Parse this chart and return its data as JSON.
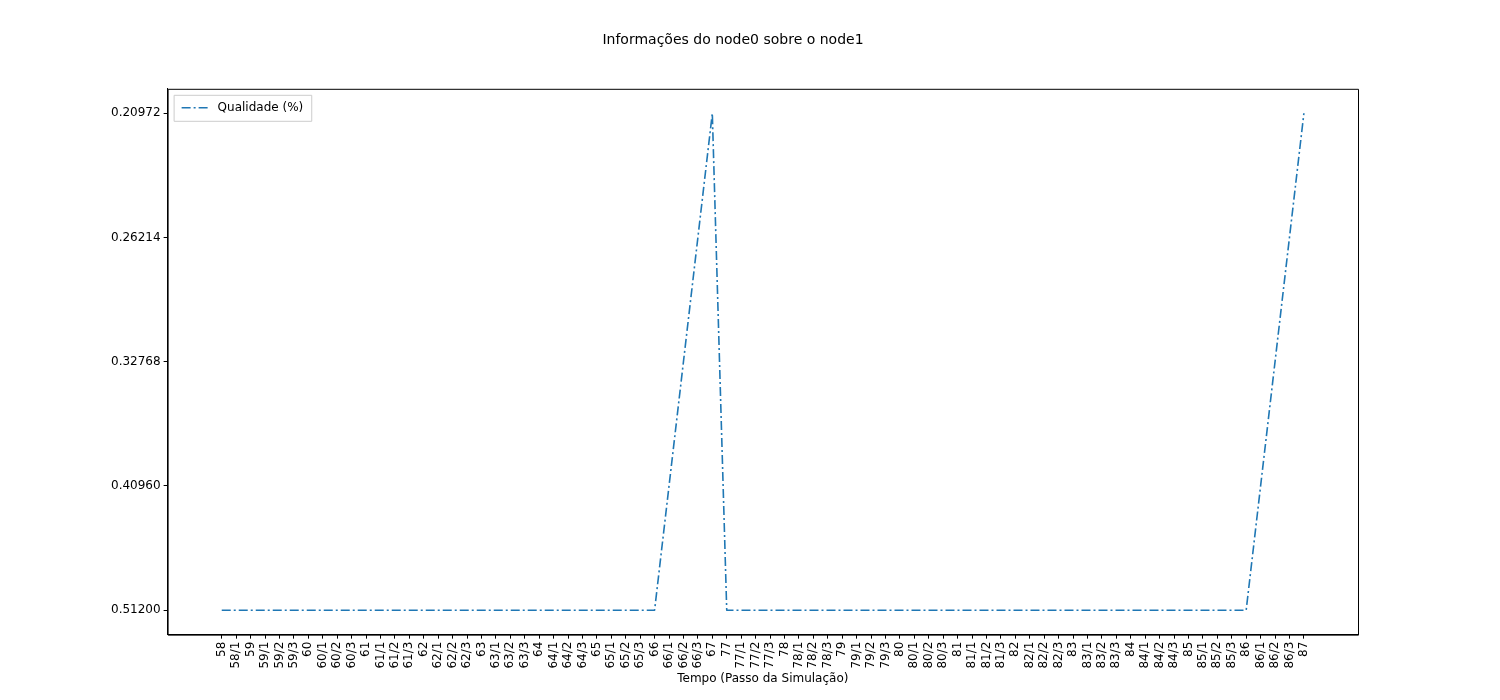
{
  "chart_data": {
    "type": "line",
    "title": "Informações do node0 sobre o node1",
    "xlabel": "Tempo (Passo da Simulação)",
    "categories": [
      "58",
      "58/1",
      "59",
      "59/1",
      "59/2",
      "59/3",
      "60",
      "60/1",
      "60/2",
      "60/3",
      "61",
      "61/1",
      "61/2",
      "61/3",
      "62",
      "62/1",
      "62/2",
      "62/3",
      "63",
      "63/1",
      "63/2",
      "63/3",
      "64",
      "64/1",
      "64/2",
      "64/3",
      "65",
      "65/1",
      "65/2",
      "65/3",
      "66",
      "66/1",
      "66/2",
      "66/3",
      "67",
      "77",
      "77/1",
      "77/2",
      "77/3",
      "78",
      "78/1",
      "78/2",
      "78/3",
      "79",
      "79/1",
      "79/2",
      "79/3",
      "80",
      "80/1",
      "80/2",
      "80/3",
      "81",
      "81/1",
      "81/2",
      "81/3",
      "82",
      "82/1",
      "82/2",
      "82/3",
      "83",
      "83/1",
      "83/2",
      "83/3",
      "84",
      "84/1",
      "84/2",
      "84/3",
      "85",
      "85/1",
      "85/2",
      "85/3",
      "86",
      "86/1",
      "86/2",
      "86/3",
      "87"
    ],
    "series": [
      {
        "name": "Qualidade (%)",
        "color": "#1f77b4",
        "values": [
          0.512,
          0.512,
          0.512,
          0.512,
          0.512,
          0.512,
          0.512,
          0.512,
          0.512,
          0.512,
          0.512,
          0.512,
          0.512,
          0.512,
          0.512,
          0.512,
          0.512,
          0.512,
          0.512,
          0.512,
          0.512,
          0.512,
          0.512,
          0.512,
          0.512,
          0.512,
          0.512,
          0.512,
          0.512,
          0.512,
          0.512,
          0.4096,
          0.32768,
          0.26214,
          0.20972,
          0.512,
          0.512,
          0.512,
          0.512,
          0.512,
          0.512,
          0.512,
          0.512,
          0.512,
          0.512,
          0.512,
          0.512,
          0.512,
          0.512,
          0.512,
          0.512,
          0.512,
          0.512,
          0.512,
          0.512,
          0.512,
          0.512,
          0.512,
          0.512,
          0.512,
          0.512,
          0.512,
          0.512,
          0.512,
          0.512,
          0.512,
          0.512,
          0.512,
          0.512,
          0.512,
          0.512,
          0.512,
          0.4096,
          0.32768,
          0.26214,
          0.20972
        ]
      }
    ],
    "log": true,
    "ylim": [
      0.535,
      0.2007
    ],
    "yticks": [
      {
        "value": 0.512,
        "label": "0.51200"
      },
      {
        "value": 0.4096,
        "label": "0.40960"
      },
      {
        "value": 0.32768,
        "label": "0.32768"
      },
      {
        "value": 0.26214,
        "label": "0.26214"
      },
      {
        "value": 0.20972,
        "label": "0.20972"
      }
    ],
    "grid": false,
    "legend": "top left",
    "marker": "none",
    "line_style": "dashed"
  }
}
